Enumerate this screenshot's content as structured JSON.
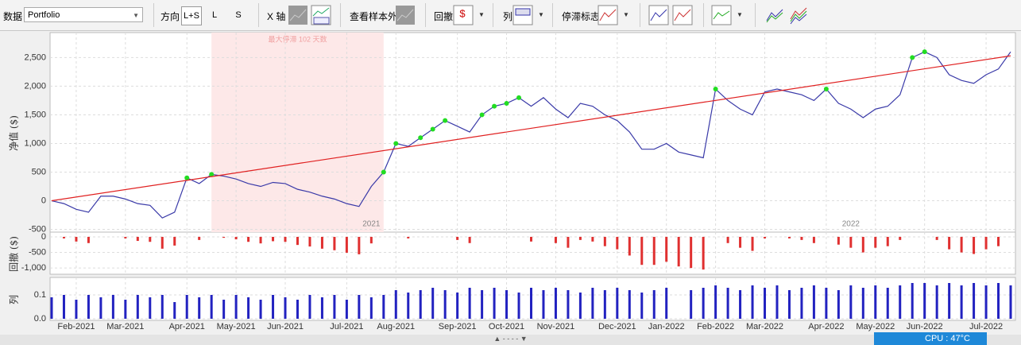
{
  "toolbar": {
    "data_label": "数据",
    "data_select": "Portfolio",
    "direction_label": "方向",
    "direction_options": [
      "L+S",
      "L",
      "S"
    ],
    "x_axis_label": "X 轴",
    "out_of_sample_label": "查看样本外",
    "drawdown_label": "回撤",
    "column_label": "列",
    "stagnation_label": "停滞标志"
  },
  "status": {
    "cpu": "CPU : 47°C"
  },
  "chart_data": [
    {
      "type": "line",
      "y_label": "净值 ($)",
      "ylim": [
        -520,
        2880
      ],
      "yticks": [
        -500,
        0,
        500,
        {
          "value": 1000,
          "label": "1,000"
        },
        {
          "value": 1500,
          "label": "1,500"
        },
        {
          "value": 2000,
          "label": "2,000"
        },
        {
          "value": 2500,
          "label": "2,500"
        }
      ],
      "grid": true,
      "series": [
        {
          "color": "#3a3aa8",
          "values": [
            0,
            -50,
            -150,
            -200,
            80,
            80,
            30,
            -50,
            -80,
            -300,
            -200,
            400,
            300,
            460,
            430,
            380,
            300,
            250,
            320,
            300,
            200,
            150,
            80,
            30,
            -50,
            -100,
            250,
            500,
            1000,
            950,
            1100,
            1250,
            1400,
            1300,
            1200,
            1500,
            1650,
            1700,
            1800,
            1650,
            1800,
            1600,
            1450,
            1700,
            1650,
            1500,
            1400,
            1200,
            900,
            900,
            1000,
            850,
            800,
            750,
            1950,
            1750,
            1600,
            1500,
            1900,
            1950,
            1900,
            1850,
            1750,
            1950,
            1700,
            1600,
            1450,
            1600,
            1650,
            1850,
            2500,
            2600,
            2500,
            2200,
            2100,
            2050,
            2200,
            2300,
            2600
          ]
        },
        {
          "color": "#22dd22",
          "marker": true,
          "values": [
            null,
            null,
            null,
            null,
            null,
            null,
            null,
            null,
            null,
            null,
            null,
            400,
            null,
            460,
            null,
            null,
            null,
            null,
            null,
            null,
            null,
            null,
            null,
            null,
            null,
            null,
            null,
            500,
            1000,
            null,
            1100,
            1250,
            1400,
            null,
            null,
            1500,
            1650,
            1700,
            1800,
            null,
            null,
            null,
            null,
            null,
            null,
            null,
            null,
            null,
            null,
            null,
            null,
            null,
            null,
            null,
            1950,
            null,
            null,
            null,
            null,
            null,
            null,
            null,
            null,
            1950,
            null,
            null,
            null,
            null,
            null,
            null,
            2500,
            2600,
            null,
            null,
            null,
            null,
            null,
            null,
            null
          ]
        }
      ],
      "trend": {
        "color": "#e02020",
        "start": 0,
        "end": 2530
      },
      "shade": {
        "from": 13,
        "to": 27,
        "label": "最大停滞 102 天数",
        "color": "#fde8e8"
      },
      "year_labels": [
        {
          "label": "2021",
          "at": 26
        },
        {
          "label": "2022",
          "at": 65
        }
      ]
    },
    {
      "type": "bar",
      "y_label": "回撤 ($)",
      "color": "#e03030",
      "ylim": [
        -1150,
        50
      ],
      "yticks": [
        0,
        -500,
        {
          "value": -1000,
          "label": "-1,000"
        }
      ],
      "grid": true,
      "values": [
        0,
        -50,
        -150,
        -200,
        0,
        0,
        -50,
        -130,
        -160,
        -380,
        -280,
        0,
        -100,
        0,
        -30,
        -80,
        -160,
        -210,
        -140,
        -160,
        -260,
        -310,
        -380,
        -430,
        -510,
        -560,
        -210,
        0,
        0,
        -50,
        0,
        0,
        0,
        -100,
        -200,
        0,
        0,
        0,
        0,
        -150,
        0,
        -200,
        -350,
        -100,
        -150,
        -300,
        -400,
        -600,
        -900,
        -900,
        -800,
        -950,
        -1000,
        -1050,
        0,
        -200,
        -350,
        -450,
        -50,
        0,
        -50,
        -100,
        -200,
        0,
        -250,
        -350,
        -500,
        -350,
        -300,
        -100,
        0,
        0,
        -100,
        -400,
        -500,
        -550,
        -400,
        -300,
        0
      ]
    },
    {
      "type": "bar",
      "y_label": "列",
      "color": "#2222c0",
      "ylim": [
        0,
        0.16
      ],
      "yticks": [
        {
          "value": 0,
          "label": "0.0"
        },
        0.1
      ],
      "grid": true,
      "values": [
        0.09,
        0.1,
        0.08,
        0.1,
        0.09,
        0.1,
        0.08,
        0.1,
        0.09,
        0.1,
        0.07,
        0.1,
        0.09,
        0.1,
        0.08,
        0.1,
        0.09,
        0.08,
        0.1,
        0.09,
        0.08,
        0.1,
        0.09,
        0.1,
        0.08,
        0.1,
        0.09,
        0.1,
        0.12,
        0.11,
        0.12,
        0.13,
        0.12,
        0.11,
        0.13,
        0.12,
        0.13,
        0.12,
        0.11,
        0.13,
        0.12,
        0.13,
        0.12,
        0.11,
        0.13,
        0.12,
        0.13,
        0.12,
        0.11,
        0.12,
        0.13,
        0,
        0.12,
        0.13,
        0.14,
        0.13,
        0.12,
        0.14,
        0.13,
        0.14,
        0.12,
        0.13,
        0.14,
        0.13,
        0.12,
        0.14,
        0.13,
        0.14,
        0.13,
        0.14,
        0.15,
        0.15,
        0.14,
        0.15,
        0.14,
        0.15,
        0.14,
        0.15,
        0.14
      ],
      "categories": [
        null,
        null,
        "Feb-2021",
        null,
        null,
        null,
        "Mar-2021",
        null,
        null,
        null,
        null,
        "Apr-2021",
        null,
        null,
        null,
        "May-2021",
        null,
        null,
        null,
        "Jun-2021",
        null,
        null,
        null,
        null,
        "Jul-2021",
        null,
        null,
        null,
        "Aug-2021",
        null,
        null,
        null,
        null,
        "Sep-2021",
        null,
        null,
        null,
        "Oct-2021",
        null,
        null,
        null,
        "Nov-2021",
        null,
        null,
        null,
        null,
        "Dec-2021",
        null,
        null,
        null,
        "Jan-2022",
        null,
        null,
        null,
        "Feb-2022",
        null,
        null,
        null,
        "Mar-2022",
        null,
        null,
        null,
        null,
        "Apr-2022",
        null,
        null,
        null,
        "May-2022",
        null,
        null,
        null,
        "Jun-2022",
        null,
        null,
        null,
        null,
        "Jul-2022",
        null,
        null
      ]
    }
  ]
}
